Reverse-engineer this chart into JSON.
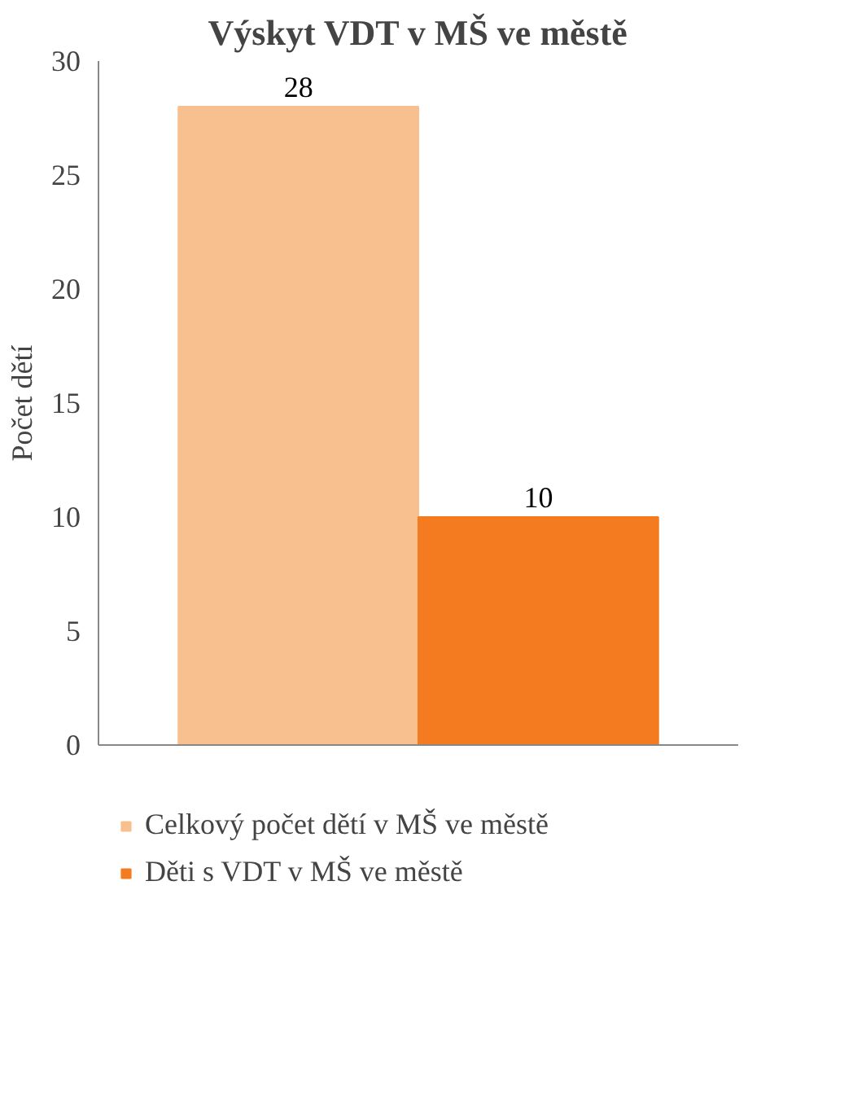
{
  "chart_data": {
    "type": "bar",
    "title": "Výskyt VDT v MŠ ve městě",
    "ylabel": "Počet dětí",
    "categories": [
      null
    ],
    "series": [
      {
        "name": "Celkový počet dětí v MŠ ve městě",
        "color": "#f8bf8f",
        "values": [
          28
        ]
      },
      {
        "name": "Děti s VDT v MŠ ve městě",
        "color": "#f47b20",
        "values": [
          10
        ]
      }
    ],
    "ylim": [
      0,
      30
    ],
    "yticks": [
      0,
      5,
      10,
      15,
      20,
      25,
      30
    ],
    "grid": false,
    "data_labels": true,
    "legend": "bottom"
  }
}
